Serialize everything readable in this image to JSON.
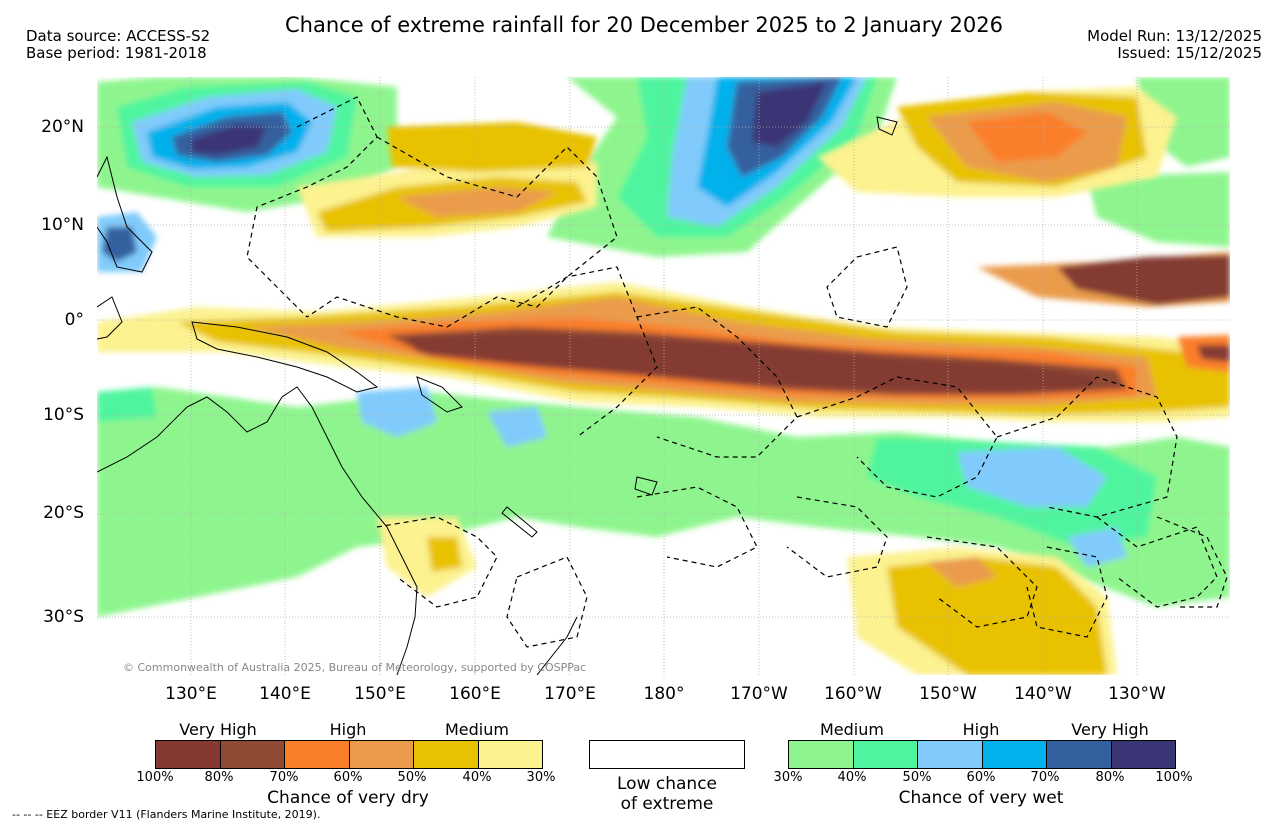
{
  "header": {
    "title": "Chance of extreme rainfall for 20 December 2025 to 2 January 2026",
    "data_source": "Data source: ACCESS-S2",
    "base_period": "Base period: 1981-2018",
    "model_run": "Model Run: 13/12/2025",
    "issued": "Issued: 15/12/2025"
  },
  "map": {
    "copyright": "© Commonwealth of Australia 2025, Bureau of Meteorology, supported by COSPPac",
    "lat_labels": [
      "20°N",
      "10°N",
      "0°",
      "10°S",
      "20°S",
      "30°S"
    ],
    "lon_labels": [
      "130°E",
      "140°E",
      "150°E",
      "160°E",
      "170°E",
      "180°",
      "170°W",
      "160°W",
      "150°W",
      "140°W",
      "130°W"
    ]
  },
  "legend": {
    "dry": {
      "caption": "Chance of very dry",
      "levels": [
        "Very High",
        "High",
        "Medium"
      ],
      "ticks": [
        "100%",
        "80%",
        "70%",
        "60%",
        "50%",
        "40%",
        "30%"
      ],
      "colors": [
        "#843a30",
        "#8f4a34",
        "#fb7f2a",
        "#ea9c4c",
        "#e8c200",
        "#fcf28f"
      ]
    },
    "neutral": {
      "caption_line1": "Low chance",
      "caption_line2": "of extreme",
      "color": "#ffffff"
    },
    "wet": {
      "caption": "Chance of very wet",
      "levels": [
        "Medium",
        "High",
        "Very High"
      ],
      "ticks": [
        "30%",
        "40%",
        "50%",
        "60%",
        "70%",
        "80%",
        "100%"
      ],
      "colors": [
        "#8ef58e",
        "#4ff59e",
        "#80cbfb",
        "#00b1ec",
        "#34609f",
        "#3a3676"
      ]
    }
  },
  "footer": {
    "eez_note": "-- -- -- EEZ border V11 (Flanders Marine Institute, 2019)."
  }
}
